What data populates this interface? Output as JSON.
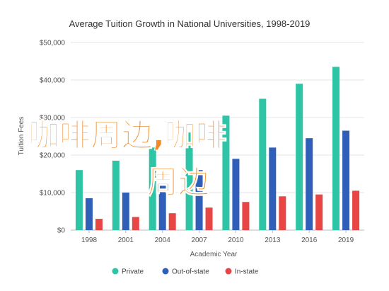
{
  "chart_data": {
    "type": "bar",
    "title": "Average Tuition Growth in National Universities, 1998-2019",
    "xlabel": "Academic Year",
    "ylabel": "Tuition Fees",
    "categories": [
      "1998",
      "2001",
      "2004",
      "2007",
      "2010",
      "2013",
      "2016",
      "2019"
    ],
    "ylim": [
      0,
      50000
    ],
    "yticks": [
      0,
      10000,
      20000,
      30000,
      40000,
      50000
    ],
    "ytick_labels": [
      "$0",
      "$10,000",
      "$20,000",
      "$30,000",
      "$40,000",
      "$50,000"
    ],
    "grid": true,
    "legend_position": "bottom",
    "series": [
      {
        "name": "Private",
        "color": "#2ec4a6",
        "values": [
          16000,
          18500,
          22000,
          26000,
          30500,
          35000,
          39000,
          43500
        ]
      },
      {
        "name": "Out-of-state",
        "color": "#2f5fb8",
        "values": [
          8500,
          10000,
          12500,
          16000,
          19000,
          22000,
          24500,
          26500
        ]
      },
      {
        "name": "In-state",
        "color": "#e84545",
        "values": [
          3000,
          3500,
          4500,
          6000,
          7500,
          9000,
          9500,
          10500
        ]
      }
    ]
  },
  "overlay": {
    "line1": "咖啡周边,咖啡",
    "line2": "周边",
    "color": "#f08a24"
  }
}
